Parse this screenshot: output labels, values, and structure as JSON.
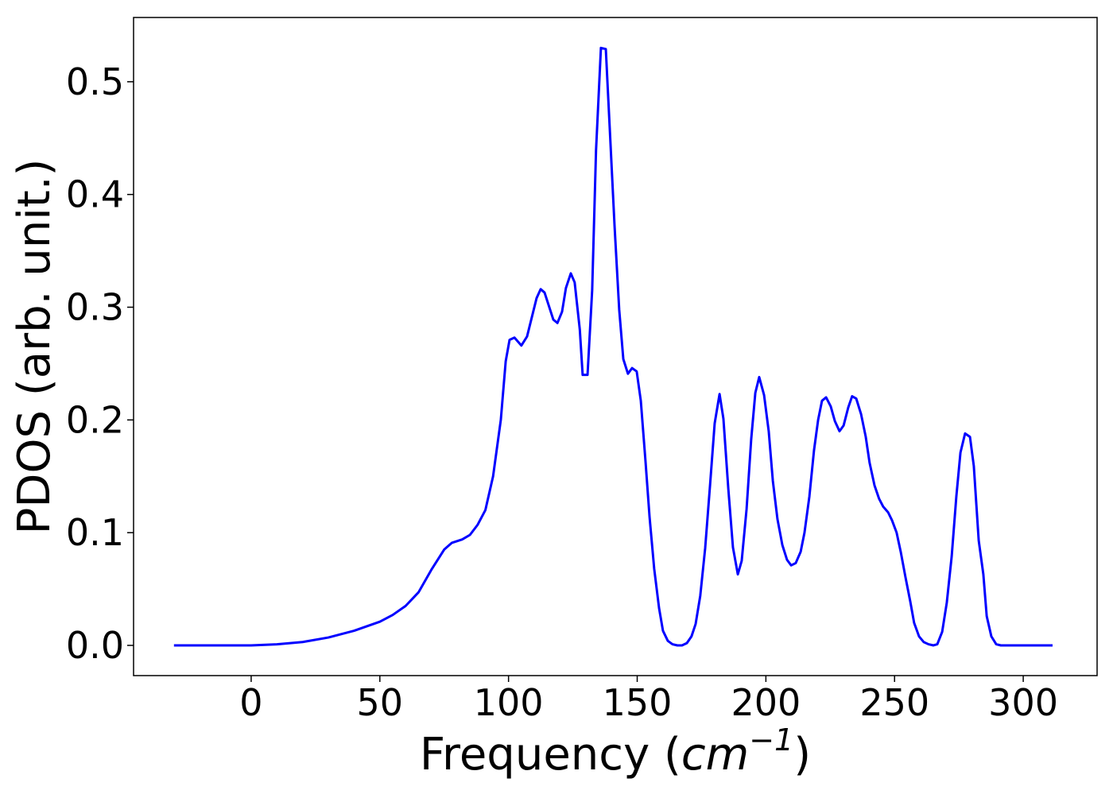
{
  "chart_data": {
    "type": "line",
    "x_label": [
      "Frequency (",
      "cm",
      "−1",
      ")"
    ],
    "y_label": "PDOS (arb. unit.)",
    "xlim": [
      -45.7,
      328.7
    ],
    "ylim": [
      -0.0268,
      0.557
    ],
    "xticks": [
      0,
      50,
      100,
      150,
      200,
      250,
      300
    ],
    "yticks": [
      {
        "value": 0,
        "label": "0.0"
      },
      0.1,
      0.2,
      0.3,
      0.4,
      0.5
    ],
    "series": [
      {
        "color": "#0000ff",
        "x": [
          -30,
          -20,
          -10,
          0,
          10,
          20,
          30,
          40,
          50,
          55,
          60,
          65,
          70,
          75,
          78,
          82,
          85,
          88,
          91,
          94,
          97,
          98.9,
          100.4,
          102.3,
          105,
          107.2,
          110.9,
          112.5,
          114,
          117.4,
          119,
          120.8,
          122.3,
          124.2,
          125.7,
          127.7,
          128.8,
          130.7,
          132.5,
          134,
          135.9,
          137.8,
          139.3,
          141.2,
          143,
          144.6,
          146.4,
          148,
          149.8,
          151.4,
          153.2,
          154.8,
          156.6,
          158.5,
          160,
          161.9,
          163.7,
          165.6,
          167.4,
          169.3,
          171.1,
          172.7,
          174.5,
          176.4,
          178.3,
          180.1,
          182,
          183.5,
          185.4,
          187.2,
          189.1,
          190.6,
          192.5,
          194.3,
          195.9,
          197.4,
          199.3,
          201.1,
          202.7,
          204.5,
          206.4,
          208.2,
          209.8,
          211.6,
          213.5,
          215,
          216.9,
          218.7,
          220.3,
          221.8,
          223.4,
          225.2,
          226.8,
          228.6,
          230.2,
          232,
          233.5,
          235.1,
          237,
          238.8,
          240.3,
          242.2,
          244,
          245.6,
          247.5,
          249,
          250.8,
          252.4,
          254.2,
          256.1,
          257.6,
          259.5,
          261.3,
          263.2,
          265.1,
          266.6,
          268.5,
          270.3,
          272.2,
          274,
          275.6,
          277.4,
          279.3,
          280.8,
          282.7,
          284.5,
          285.8,
          287.6,
          289.5,
          291.3,
          300,
          311.4
        ],
        "values": [
          0,
          0,
          0,
          0,
          0.001,
          0.003,
          0.007,
          0.013,
          0.021,
          0.027,
          0.035,
          0.047,
          0.067,
          0.085,
          0.091,
          0.094,
          0.098,
          0.107,
          0.12,
          0.15,
          0.2,
          0.252,
          0.271,
          0.273,
          0.266,
          0.274,
          0.308,
          0.316,
          0.313,
          0.289,
          0.286,
          0.296,
          0.317,
          0.33,
          0.322,
          0.28,
          0.24,
          0.24,
          0.315,
          0.439,
          0.53,
          0.529,
          0.46,
          0.372,
          0.298,
          0.254,
          0.241,
          0.246,
          0.243,
          0.217,
          0.164,
          0.114,
          0.068,
          0.033,
          0.013,
          0.004,
          0.001,
          0,
          0,
          0.002,
          0.008,
          0.019,
          0.044,
          0.086,
          0.142,
          0.197,
          0.223,
          0.201,
          0.139,
          0.087,
          0.063,
          0.075,
          0.121,
          0.183,
          0.224,
          0.238,
          0.222,
          0.19,
          0.146,
          0.112,
          0.089,
          0.076,
          0.071,
          0.073,
          0.083,
          0.1,
          0.132,
          0.173,
          0.2,
          0.217,
          0.22,
          0.212,
          0.199,
          0.19,
          0.195,
          0.211,
          0.221,
          0.219,
          0.205,
          0.185,
          0.162,
          0.142,
          0.13,
          0.123,
          0.118,
          0.111,
          0.1,
          0.083,
          0.061,
          0.039,
          0.02,
          0.008,
          0.003,
          0.001,
          0,
          0.001,
          0.012,
          0.038,
          0.079,
          0.132,
          0.171,
          0.188,
          0.185,
          0.159,
          0.093,
          0.063,
          0.026,
          0.008,
          0.001,
          0,
          0,
          0
        ]
      }
    ]
  }
}
